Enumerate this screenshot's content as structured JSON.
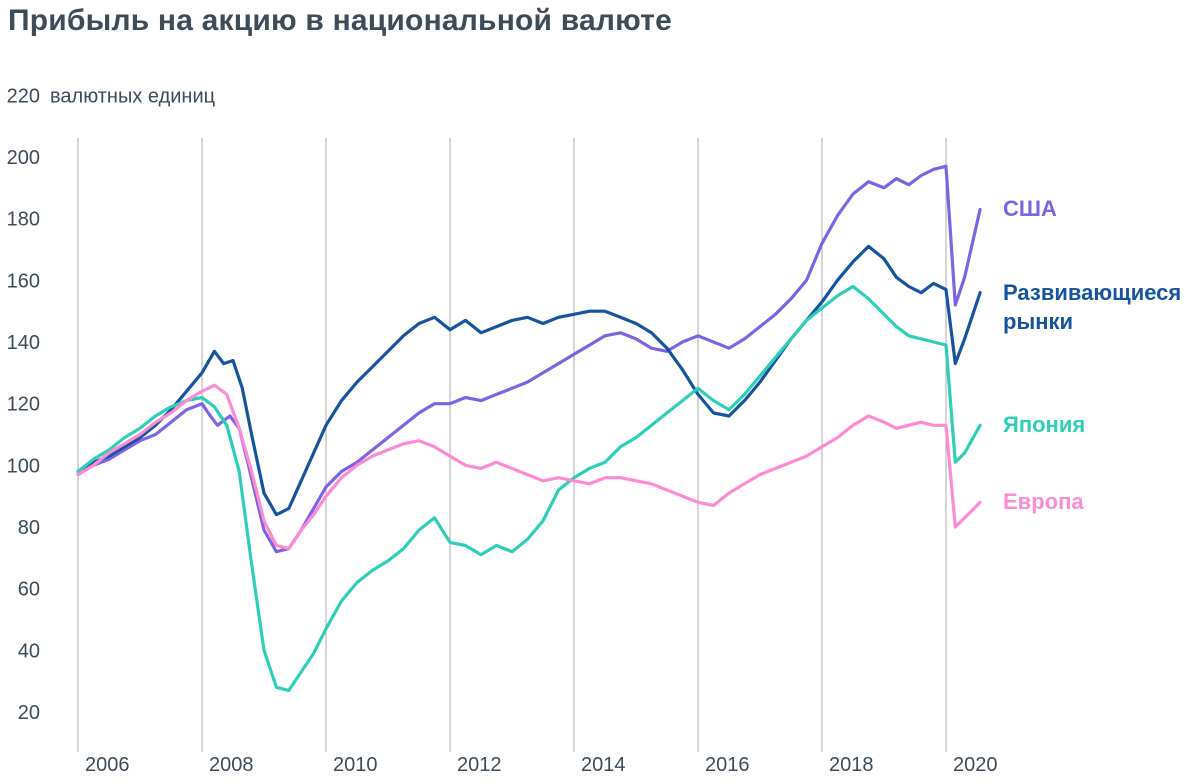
{
  "title": "Прибыль на акцию в национальной валюте",
  "chart_data": {
    "type": "line",
    "title": "Прибыль на акцию в национальной валюте",
    "grid": "vertical-only",
    "legend_position": "right",
    "style": {
      "grid_color": "#ababab",
      "text_color": "#3e4c59",
      "background": "#ffffff"
    },
    "x_axis": {
      "label": "",
      "ticks": [
        2006,
        2008,
        2010,
        2012,
        2014,
        2016,
        2018,
        2020
      ],
      "range": [
        2006,
        2020.6
      ]
    },
    "y_axis": {
      "unit": "валютных единиц",
      "ticks": [
        20,
        40,
        60,
        80,
        100,
        120,
        140,
        160,
        180,
        200,
        220
      ],
      "range": [
        20,
        220
      ]
    },
    "series": [
      {
        "name": "США",
        "color": "#7c64e4",
        "points": [
          [
            2006,
            97
          ],
          [
            2006.25,
            100
          ],
          [
            2006.5,
            102
          ],
          [
            2006.75,
            105
          ],
          [
            2007,
            108
          ],
          [
            2007.25,
            110
          ],
          [
            2007.5,
            114
          ],
          [
            2007.75,
            118
          ],
          [
            2008,
            120
          ],
          [
            2008.1,
            117
          ],
          [
            2008.25,
            113
          ],
          [
            2008.45,
            116
          ],
          [
            2008.6,
            112
          ],
          [
            2008.75,
            100
          ],
          [
            2009,
            79
          ],
          [
            2009.2,
            72
          ],
          [
            2009.4,
            73
          ],
          [
            2009.6,
            79
          ],
          [
            2009.8,
            86
          ],
          [
            2010,
            93
          ],
          [
            2010.25,
            98
          ],
          [
            2010.5,
            101
          ],
          [
            2010.75,
            105
          ],
          [
            2011,
            109
          ],
          [
            2011.25,
            113
          ],
          [
            2011.5,
            117
          ],
          [
            2011.75,
            120
          ],
          [
            2012,
            120
          ],
          [
            2012.25,
            122
          ],
          [
            2012.5,
            121
          ],
          [
            2012.75,
            123
          ],
          [
            2013,
            125
          ],
          [
            2013.25,
            127
          ],
          [
            2013.5,
            130
          ],
          [
            2013.75,
            133
          ],
          [
            2014,
            136
          ],
          [
            2014.25,
            139
          ],
          [
            2014.5,
            142
          ],
          [
            2014.75,
            143
          ],
          [
            2015,
            141
          ],
          [
            2015.25,
            138
          ],
          [
            2015.5,
            137
          ],
          [
            2015.75,
            140
          ],
          [
            2016,
            142
          ],
          [
            2016.25,
            140
          ],
          [
            2016.5,
            138
          ],
          [
            2016.75,
            141
          ],
          [
            2017,
            145
          ],
          [
            2017.25,
            149
          ],
          [
            2017.5,
            154
          ],
          [
            2017.75,
            160
          ],
          [
            2018,
            172
          ],
          [
            2018.25,
            181
          ],
          [
            2018.5,
            188
          ],
          [
            2018.75,
            192
          ],
          [
            2019,
            190
          ],
          [
            2019.2,
            193
          ],
          [
            2019.4,
            191
          ],
          [
            2019.6,
            194
          ],
          [
            2019.8,
            196
          ],
          [
            2020,
            197
          ],
          [
            2020.15,
            152
          ],
          [
            2020.3,
            161
          ],
          [
            2020.55,
            183
          ]
        ]
      },
      {
        "name": "Развивающиеся рынки",
        "color": "#17549d",
        "points": [
          [
            2006,
            98
          ],
          [
            2006.25,
            101
          ],
          [
            2006.5,
            103
          ],
          [
            2006.75,
            106
          ],
          [
            2007,
            109
          ],
          [
            2007.25,
            113
          ],
          [
            2007.5,
            118
          ],
          [
            2007.75,
            124
          ],
          [
            2008,
            130
          ],
          [
            2008.2,
            137
          ],
          [
            2008.35,
            133
          ],
          [
            2008.5,
            134
          ],
          [
            2008.65,
            125
          ],
          [
            2008.8,
            110
          ],
          [
            2009,
            91
          ],
          [
            2009.2,
            84
          ],
          [
            2009.4,
            86
          ],
          [
            2009.6,
            95
          ],
          [
            2009.8,
            104
          ],
          [
            2010,
            113
          ],
          [
            2010.25,
            121
          ],
          [
            2010.5,
            127
          ],
          [
            2010.75,
            132
          ],
          [
            2011,
            137
          ],
          [
            2011.25,
            142
          ],
          [
            2011.5,
            146
          ],
          [
            2011.75,
            148
          ],
          [
            2012,
            144
          ],
          [
            2012.25,
            147
          ],
          [
            2012.5,
            143
          ],
          [
            2012.75,
            145
          ],
          [
            2013,
            147
          ],
          [
            2013.25,
            148
          ],
          [
            2013.5,
            146
          ],
          [
            2013.75,
            148
          ],
          [
            2014,
            149
          ],
          [
            2014.25,
            150
          ],
          [
            2014.5,
            150
          ],
          [
            2014.75,
            148
          ],
          [
            2015,
            146
          ],
          [
            2015.25,
            143
          ],
          [
            2015.5,
            138
          ],
          [
            2015.75,
            131
          ],
          [
            2016,
            123
          ],
          [
            2016.25,
            117
          ],
          [
            2016.5,
            116
          ],
          [
            2016.75,
            121
          ],
          [
            2017,
            127
          ],
          [
            2017.25,
            134
          ],
          [
            2017.5,
            141
          ],
          [
            2017.75,
            147
          ],
          [
            2018,
            153
          ],
          [
            2018.25,
            160
          ],
          [
            2018.5,
            166
          ],
          [
            2018.75,
            171
          ],
          [
            2019,
            167
          ],
          [
            2019.2,
            161
          ],
          [
            2019.4,
            158
          ],
          [
            2019.6,
            156
          ],
          [
            2019.8,
            159
          ],
          [
            2020,
            157
          ],
          [
            2020.15,
            133
          ],
          [
            2020.3,
            141
          ],
          [
            2020.55,
            156
          ]
        ]
      },
      {
        "name": "Япония",
        "color": "#2fceb9",
        "points": [
          [
            2006,
            98
          ],
          [
            2006.25,
            102
          ],
          [
            2006.5,
            105
          ],
          [
            2006.75,
            109
          ],
          [
            2007,
            112
          ],
          [
            2007.25,
            116
          ],
          [
            2007.5,
            119
          ],
          [
            2007.75,
            121
          ],
          [
            2008,
            122
          ],
          [
            2008.2,
            119
          ],
          [
            2008.4,
            113
          ],
          [
            2008.6,
            98
          ],
          [
            2008.8,
            68
          ],
          [
            2009,
            40
          ],
          [
            2009.2,
            28
          ],
          [
            2009.4,
            27
          ],
          [
            2009.6,
            33
          ],
          [
            2009.8,
            39
          ],
          [
            2010,
            47
          ],
          [
            2010.25,
            56
          ],
          [
            2010.5,
            62
          ],
          [
            2010.75,
            66
          ],
          [
            2011,
            69
          ],
          [
            2011.25,
            73
          ],
          [
            2011.5,
            79
          ],
          [
            2011.75,
            83
          ],
          [
            2012,
            75
          ],
          [
            2012.25,
            74
          ],
          [
            2012.5,
            71
          ],
          [
            2012.75,
            74
          ],
          [
            2013,
            72
          ],
          [
            2013.25,
            76
          ],
          [
            2013.5,
            82
          ],
          [
            2013.75,
            92
          ],
          [
            2014,
            96
          ],
          [
            2014.25,
            99
          ],
          [
            2014.5,
            101
          ],
          [
            2014.75,
            106
          ],
          [
            2015,
            109
          ],
          [
            2015.25,
            113
          ],
          [
            2015.5,
            117
          ],
          [
            2015.75,
            121
          ],
          [
            2016,
            125
          ],
          [
            2016.25,
            121
          ],
          [
            2016.5,
            118
          ],
          [
            2016.75,
            123
          ],
          [
            2017,
            129
          ],
          [
            2017.25,
            135
          ],
          [
            2017.5,
            141
          ],
          [
            2017.75,
            147
          ],
          [
            2018,
            151
          ],
          [
            2018.25,
            155
          ],
          [
            2018.5,
            158
          ],
          [
            2018.75,
            154
          ],
          [
            2019,
            149
          ],
          [
            2019.2,
            145
          ],
          [
            2019.4,
            142
          ],
          [
            2019.6,
            141
          ],
          [
            2019.8,
            140
          ],
          [
            2020,
            139
          ],
          [
            2020.15,
            101
          ],
          [
            2020.3,
            104
          ],
          [
            2020.55,
            113
          ]
        ]
      },
      {
        "name": "Европа",
        "color": "#fc8bd4",
        "points": [
          [
            2006,
            97
          ],
          [
            2006.25,
            100
          ],
          [
            2006.5,
            104
          ],
          [
            2006.75,
            107
          ],
          [
            2007,
            110
          ],
          [
            2007.25,
            114
          ],
          [
            2007.5,
            117
          ],
          [
            2007.75,
            121
          ],
          [
            2008,
            124
          ],
          [
            2008.2,
            126
          ],
          [
            2008.4,
            123
          ],
          [
            2008.6,
            112
          ],
          [
            2008.8,
            98
          ],
          [
            2009,
            82
          ],
          [
            2009.2,
            74
          ],
          [
            2009.4,
            73
          ],
          [
            2009.6,
            79
          ],
          [
            2009.8,
            84
          ],
          [
            2010,
            90
          ],
          [
            2010.25,
            96
          ],
          [
            2010.5,
            100
          ],
          [
            2010.75,
            103
          ],
          [
            2011,
            105
          ],
          [
            2011.25,
            107
          ],
          [
            2011.5,
            108
          ],
          [
            2011.75,
            106
          ],
          [
            2012,
            103
          ],
          [
            2012.25,
            100
          ],
          [
            2012.5,
            99
          ],
          [
            2012.75,
            101
          ],
          [
            2013,
            99
          ],
          [
            2013.25,
            97
          ],
          [
            2013.5,
            95
          ],
          [
            2013.75,
            96
          ],
          [
            2014,
            95
          ],
          [
            2014.25,
            94
          ],
          [
            2014.5,
            96
          ],
          [
            2014.75,
            96
          ],
          [
            2015,
            95
          ],
          [
            2015.25,
            94
          ],
          [
            2015.5,
            92
          ],
          [
            2015.75,
            90
          ],
          [
            2016,
            88
          ],
          [
            2016.25,
            87
          ],
          [
            2016.5,
            91
          ],
          [
            2016.75,
            94
          ],
          [
            2017,
            97
          ],
          [
            2017.25,
            99
          ],
          [
            2017.5,
            101
          ],
          [
            2017.75,
            103
          ],
          [
            2018,
            106
          ],
          [
            2018.25,
            109
          ],
          [
            2018.5,
            113
          ],
          [
            2018.75,
            116
          ],
          [
            2019,
            114
          ],
          [
            2019.2,
            112
          ],
          [
            2019.4,
            113
          ],
          [
            2019.6,
            114
          ],
          [
            2019.8,
            113
          ],
          [
            2020,
            113
          ],
          [
            2020.15,
            80
          ],
          [
            2020.3,
            83
          ],
          [
            2020.55,
            88
          ]
        ]
      }
    ]
  }
}
